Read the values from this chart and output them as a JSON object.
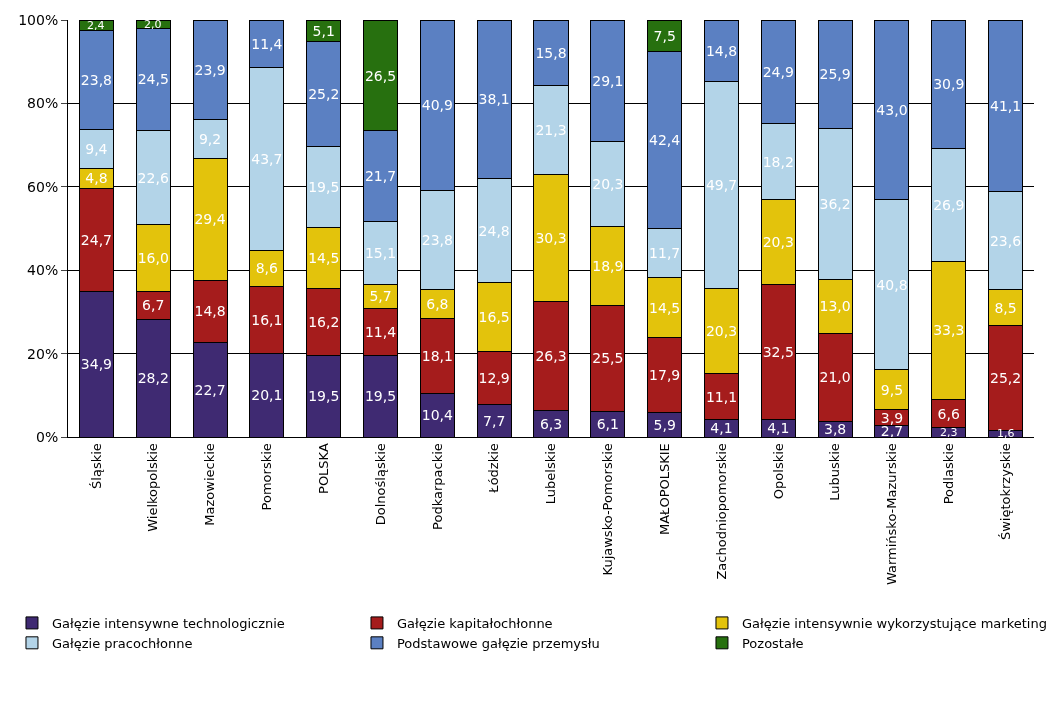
{
  "chart_data": {
    "type": "bar",
    "stacked": true,
    "categories": [
      "Śląskie",
      "Wielkopolskie",
      "Mazowieckie",
      "Pomorskie",
      "POLSKA",
      "Dolnośląskie",
      "Podkarpackie",
      "Łódzkie",
      "Lubelskie",
      "Kujawsko-Pomorskie",
      "MAŁOPOLSKIE",
      "Zachodniopomorskie",
      "Opolskie",
      "Lubuskie",
      "Warmińsko-Mazurskie",
      "Podlaskie",
      "Świętokrzyskie"
    ],
    "series": [
      {
        "name": "Gałęzie intensywne technologicznie",
        "color": "#3f2a72",
        "values": [
          34.9,
          28.2,
          22.7,
          20.1,
          19.5,
          19.5,
          10.4,
          7.7,
          6.3,
          6.1,
          5.9,
          4.1,
          4.1,
          3.8,
          2.7,
          2.3,
          1.6
        ],
        "value_labels": [
          "34,9",
          "28,2",
          "22,7",
          "20,1",
          "19,5",
          "19,5",
          "10,4",
          "7,7",
          "6,3",
          "6,1",
          "5,9",
          "4,1",
          "4,1",
          "3,8",
          "2,7",
          "2,3",
          "1,6"
        ]
      },
      {
        "name": "Gałęzie kapitałochłonne",
        "color": "#a51c1c",
        "values": [
          24.7,
          6.7,
          14.8,
          16.1,
          16.2,
          11.4,
          18.1,
          12.9,
          26.3,
          25.5,
          17.9,
          11.1,
          32.5,
          21.0,
          3.9,
          6.6,
          25.2
        ],
        "value_labels": [
          "24,7",
          "6,7",
          "14,8",
          "16,1",
          "16,2",
          "11,4",
          "18,1",
          "12,9",
          "26,3",
          "25,5",
          "17,9",
          "11,1",
          "32,5",
          "21,0",
          "3,9",
          "6,6",
          "25,2"
        ]
      },
      {
        "name": "Gałęzie intensywnie wykorzystujące marketing",
        "color": "#e3c30c",
        "values": [
          4.8,
          16.0,
          29.4,
          8.6,
          14.5,
          5.7,
          6.8,
          16.5,
          30.3,
          18.9,
          14.5,
          20.3,
          20.3,
          13.0,
          9.5,
          33.3,
          8.5
        ],
        "value_labels": [
          "4,8",
          "16,0",
          "29,4",
          "8,6",
          "14,5",
          "5,7",
          "6,8",
          "16,5",
          "30,3",
          "18,9",
          "14,5",
          "20,3",
          "20,3",
          "13,0",
          "9,5",
          "33,3",
          "8,5"
        ]
      },
      {
        "name": "Gałęzie pracochłonne",
        "color": "#b3d4e8",
        "values": [
          9.4,
          22.6,
          9.2,
          43.7,
          19.5,
          15.1,
          23.8,
          24.8,
          21.3,
          20.3,
          11.7,
          49.7,
          18.2,
          36.2,
          40.8,
          26.9,
          23.6
        ],
        "value_labels": [
          "9,4",
          "22,6",
          "9,2",
          "43,7",
          "19,5",
          "15,1",
          "23,8",
          "24,8",
          "21,3",
          "20,3",
          "11,7",
          "49,7",
          "18,2",
          "36,2",
          "40,8",
          "26,9",
          "23,6"
        ]
      },
      {
        "name": "Podstawowe gałęzie przemysłu",
        "color": "#5b80c2",
        "values": [
          23.8,
          24.5,
          23.9,
          11.4,
          25.2,
          21.7,
          40.9,
          38.1,
          15.8,
          29.1,
          42.4,
          14.8,
          24.9,
          25.9,
          43.0,
          30.9,
          41.1
        ],
        "value_labels": [
          "23,8",
          "24,5",
          "23,9",
          "11,4",
          "25,2",
          "21,7",
          "40,9",
          "38,1",
          "15,8",
          "29,1",
          "42,4",
          "14,8",
          "24,9",
          "25,9",
          "43,0",
          "30,9",
          "41,1"
        ]
      },
      {
        "name": "Pozostałe",
        "color": "#27700f",
        "values": [
          2.4,
          2.0,
          null,
          null,
          5.1,
          26.5,
          null,
          null,
          null,
          null,
          7.5,
          null,
          null,
          null,
          null,
          null,
          null
        ],
        "value_labels": [
          "2,4",
          "2,0",
          null,
          null,
          "5,1",
          "26,5",
          null,
          null,
          null,
          null,
          "7,5",
          null,
          null,
          null,
          null,
          null,
          null
        ]
      }
    ],
    "ylim": [
      0,
      100
    ],
    "yticks": [
      {
        "value": 0,
        "label": "0%"
      },
      {
        "value": 20,
        "label": "20%"
      },
      {
        "value": 40,
        "label": "40%"
      },
      {
        "value": 60,
        "label": "60%"
      },
      {
        "value": 80,
        "label": "80%"
      },
      {
        "value": 100,
        "label": "100%"
      }
    ],
    "grid": "y",
    "legend": "bottom"
  }
}
